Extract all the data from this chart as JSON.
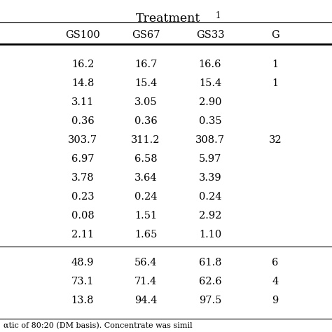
{
  "title": "Treatment",
  "title_superscript": "1",
  "col_headers": [
    "GS100",
    "GS67",
    "GS33",
    "G"
  ],
  "rows": [
    [
      "16.2",
      "16.7",
      "16.6",
      "1"
    ],
    [
      "14.8",
      "15.4",
      "15.4",
      "1"
    ],
    [
      "3.11",
      "3.05",
      "2.90",
      ""
    ],
    [
      "0.36",
      "0.36",
      "0.35",
      ""
    ],
    [
      "303.7",
      "311.2",
      "308.7",
      "32"
    ],
    [
      "6.97",
      "6.58",
      "5.97",
      ""
    ],
    [
      "3.78",
      "3.64",
      "3.39",
      ""
    ],
    [
      "0.23",
      "0.24",
      "0.24",
      ""
    ],
    [
      "0.08",
      "1.51",
      "2.92",
      ""
    ],
    [
      "2.11",
      "1.65",
      "1.10",
      ""
    ],
    [
      "48.9",
      "56.4",
      "61.8",
      "6"
    ],
    [
      "73.1",
      "71.4",
      "62.6",
      "4"
    ],
    [
      "13.8",
      "94.4",
      "97.5",
      "9"
    ]
  ],
  "footer": "αtic of 80:20 (DM basis). Concentrate was simil",
  "bg_color": "#ffffff",
  "text_color": "#000000",
  "font_size": 10.5,
  "header_font_size": 10.5,
  "title_font_size": 12.5
}
